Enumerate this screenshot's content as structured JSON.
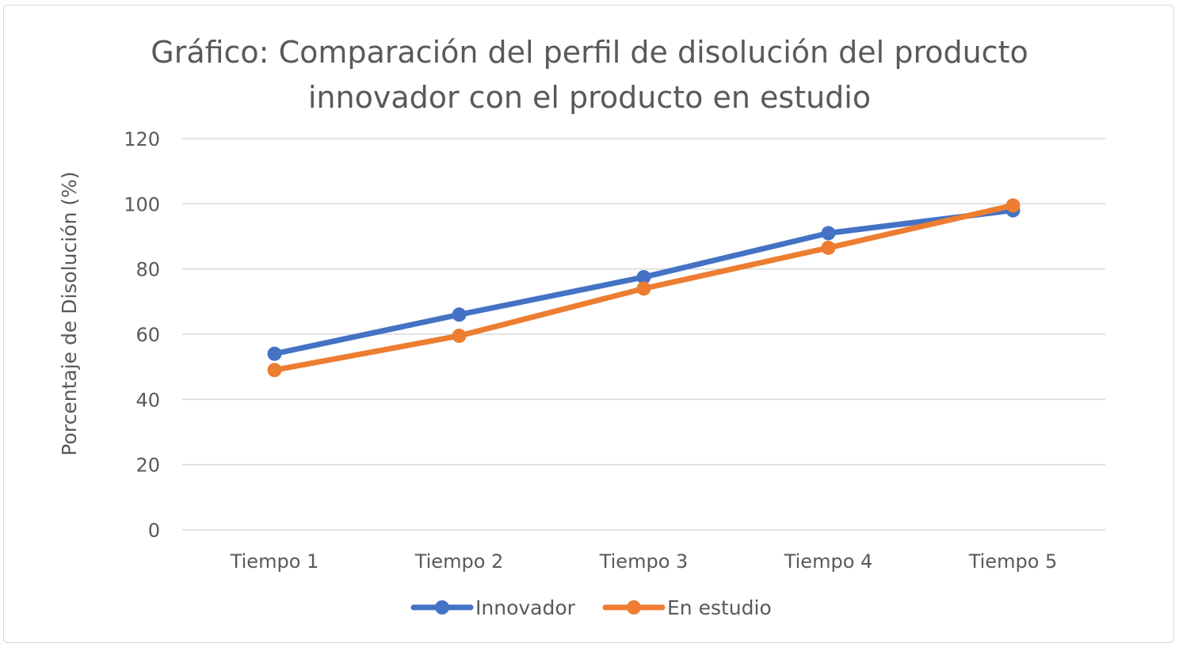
{
  "chart_data": {
    "type": "line",
    "title_lines": [
      "Gráfico: Comparación del perfil de disolución del producto",
      "innovador con el producto en estudio"
    ],
    "xlabel": "",
    "ylabel": "Porcentaje de Disolución (%)",
    "categories": [
      "Tiempo 1",
      "Tiempo 2",
      "Tiempo 3",
      "Tiempo 4",
      "Tiempo 5"
    ],
    "ylim": [
      0,
      120
    ],
    "yticks": [
      0,
      20,
      40,
      60,
      80,
      100,
      120
    ],
    "grid": true,
    "legend_position": "bottom-center",
    "series": [
      {
        "name": "Innovador",
        "color": "#4472C4",
        "values": [
          54,
          66,
          77.5,
          91,
          98
        ]
      },
      {
        "name": "En estudio",
        "color": "#ED7D31",
        "values": [
          49,
          59.5,
          74,
          86.5,
          99.5
        ]
      }
    ]
  }
}
